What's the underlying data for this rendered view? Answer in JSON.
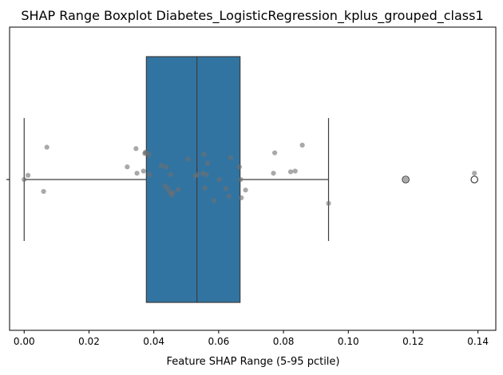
{
  "chart_data": {
    "type": "boxplot",
    "title": "SHAP Range Boxplot Diabetes_LogisticRegression_kplus_grouped_class1",
    "xlabel": "Feature SHAP Range (5-95 pctile)",
    "ylabel": "",
    "xlim": [
      -0.0045,
      0.1455
    ],
    "xticks": [
      0.0,
      0.02,
      0.04,
      0.06,
      0.08,
      0.1,
      0.12,
      0.14
    ],
    "xtick_labels": [
      "0.00",
      "0.02",
      "0.04",
      "0.06",
      "0.08",
      "0.10",
      "0.12",
      "0.14"
    ],
    "grid": false,
    "box": {
      "whisker_low": 0.0,
      "q1": 0.0377,
      "median": 0.0533,
      "q3": 0.0666,
      "whisker_high": 0.0939,
      "fliers": [
        0.1177,
        0.1389
      ],
      "color": "#3274a1",
      "line_color": "#3d3d3d"
    },
    "points": {
      "color": "#707070",
      "jitter_y": [
        0.0,
        0.06,
        -0.17,
        0.46,
        0.18,
        0.44,
        0.09,
        0.12,
        0.37,
        0.39,
        0.38,
        0.35,
        0.07,
        0.2,
        0.18,
        -0.09,
        -0.13,
        -0.18,
        0.07,
        -0.22,
        -0.19,
        -0.14,
        0.29,
        0.05,
        0.07,
        0.09,
        0.36,
        0.07,
        -0.12,
        0.23,
        -0.3,
        -0.13,
        0.31,
        0.0,
        -0.24,
        0.18,
        -0.26,
        0.0,
        -0.15,
        0.09,
        0.38,
        0.12,
        0.49,
        0.11,
        -0.34,
        0.0,
        0.09
      ],
      "values": [
        0.0,
        0.0012,
        0.006,
        0.007,
        0.0318,
        0.0345,
        0.0348,
        0.0368,
        0.0372,
        0.0374,
        0.0376,
        0.0385,
        0.0387,
        0.0423,
        0.0438,
        0.0435,
        0.0442,
        0.0449,
        0.0452,
        0.0455,
        0.0459,
        0.0475,
        0.0506,
        0.0528,
        0.0534,
        0.0551,
        0.0555,
        0.0562,
        0.0558,
        0.0566,
        0.0586,
        0.0622,
        0.0637,
        0.0602,
        0.0632,
        0.0664,
        0.067,
        0.0668,
        0.0683,
        0.0769,
        0.0773,
        0.0836,
        0.0858,
        0.0822,
        0.0939,
        0.1177,
        0.1389
      ]
    }
  }
}
